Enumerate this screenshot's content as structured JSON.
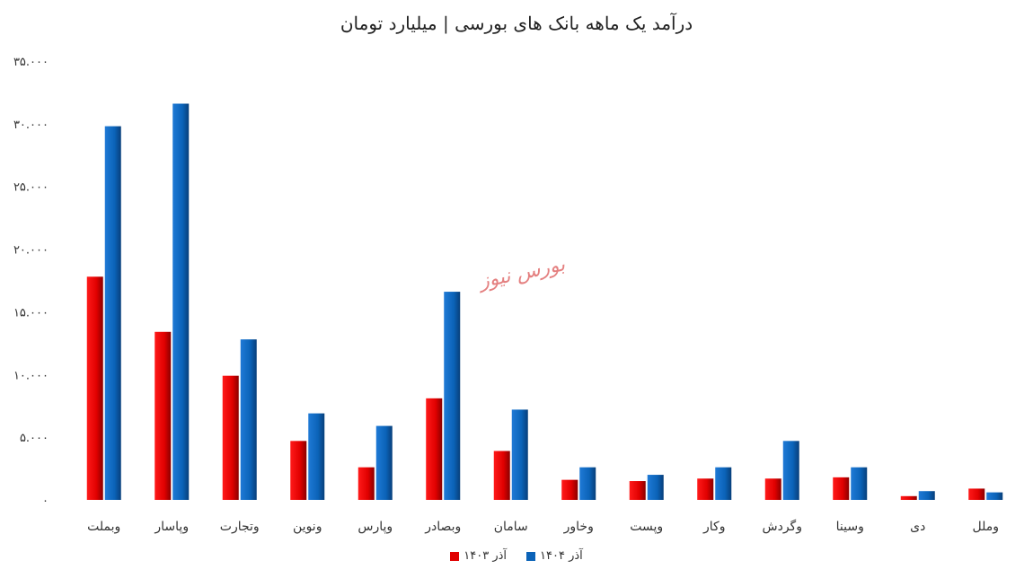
{
  "chart_data": {
    "type": "bar",
    "title": "درآمد یک ماهه بانک های بورسی | میلیارد تومان",
    "watermark": "بورس نیوز",
    "categories": [
      "وبملت",
      "وپاسار",
      "وتجارت",
      "ونوین",
      "وپارس",
      "وبصادر",
      "سامان",
      "وخاور",
      "وپست",
      "وکار",
      "وگردش",
      "وسینا",
      "دی",
      "وملل"
    ],
    "series": [
      {
        "name": "آذر ۱۴۰۳",
        "color": "#e00000",
        "values": [
          17800,
          13400,
          9900,
          4700,
          2600,
          8100,
          3900,
          1600,
          1500,
          1700,
          1700,
          1800,
          300,
          900
        ]
      },
      {
        "name": "آذر ۱۴۰۴",
        "color": "#0b63b8",
        "values": [
          29800,
          31600,
          12800,
          6900,
          5900,
          16600,
          7200,
          2600,
          2000,
          2600,
          4700,
          2600,
          700,
          600
        ]
      }
    ],
    "y_ticks": [
      "۰",
      "۵.۰۰۰",
      "۱۰.۰۰۰",
      "۱۵.۰۰۰",
      "۲۰.۰۰۰",
      "۲۵.۰۰۰",
      "۳۰.۰۰۰",
      "۳۵.۰۰۰"
    ],
    "ylim": [
      0,
      35000
    ],
    "grid": false,
    "legend_position": "bottom"
  }
}
